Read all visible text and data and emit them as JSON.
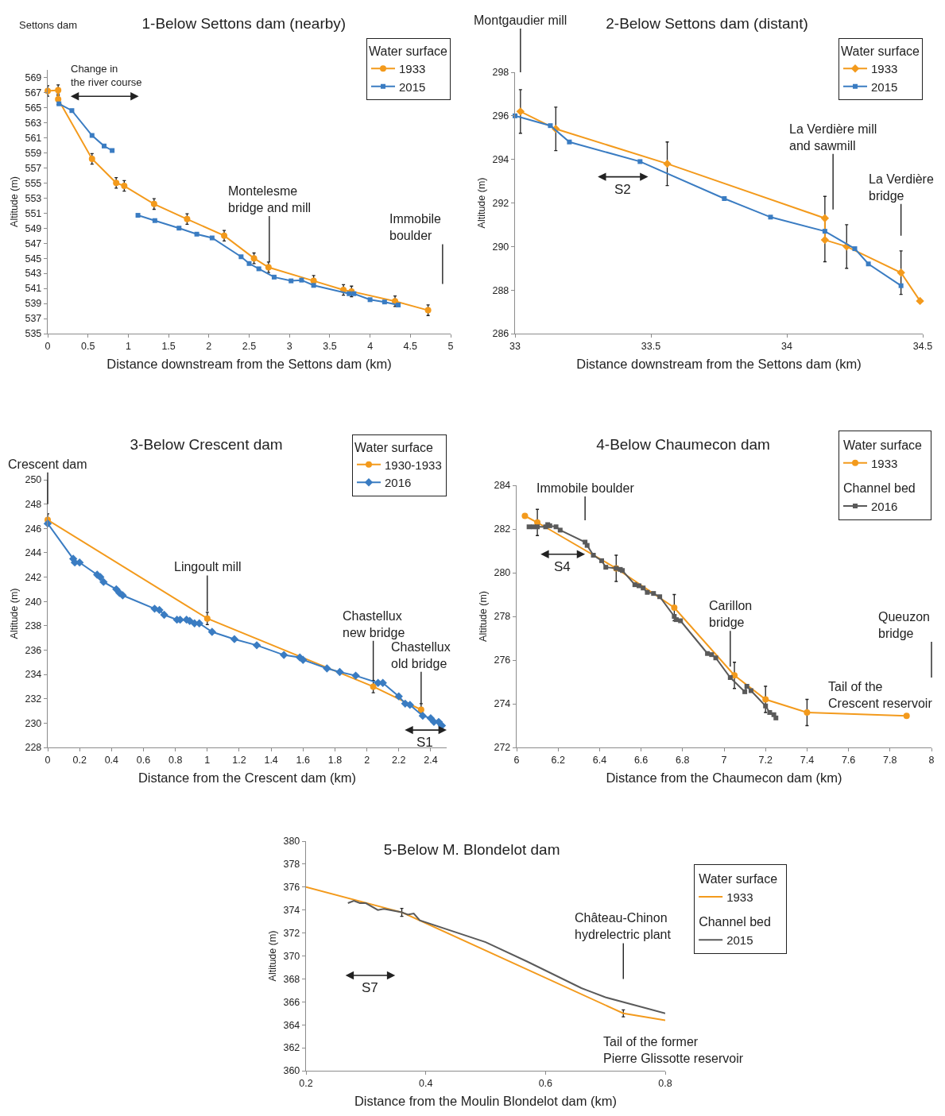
{
  "chart_data": [
    {
      "type": "line",
      "title": "1-Below Settons dam (nearby)",
      "xlabel": "Distance downstream from the Settons dam (km)",
      "ylabel": "Altitude (m)",
      "legend_title": "Water surface",
      "legend": "top right",
      "xlim": [
        0,
        5
      ],
      "xticks": [
        0,
        0.5,
        1,
        1.5,
        2,
        2.5,
        3,
        3.5,
        4,
        4.5,
        5
      ],
      "ylim": [
        535,
        570
      ],
      "yticks": [
        535,
        537,
        539,
        541,
        543,
        545,
        547,
        549,
        551,
        553,
        555,
        557,
        559,
        561,
        563,
        565,
        567,
        569
      ],
      "series": [
        {
          "name": "1933",
          "color": "#f39a1c",
          "marker": "circle",
          "x": [
            0,
            0.13,
            0.13,
            0.55,
            0.85,
            0.95,
            1.32,
            1.73,
            2.19,
            2.56,
            2.74,
            3.3,
            3.67,
            3.77,
            4.31,
            4.72
          ],
          "values": [
            567.2,
            567.3,
            566.1,
            558.2,
            555,
            554.6,
            552.2,
            550.2,
            548,
            545,
            543.8,
            542,
            540.8,
            540.6,
            539.3,
            538.1
          ],
          "errors": [
            0.7,
            0.7,
            0.7,
            0.7,
            0.7,
            0.7,
            0.7,
            0.7,
            0.7,
            0.7,
            0.7,
            0.7,
            0.7,
            0.7,
            0.7,
            0.7
          ]
        },
        {
          "name": "2015",
          "color": "#3a7cc2",
          "marker": "square",
          "x": [
            0.14,
            0.3,
            0.55,
            0.7,
            0.8,
            0.95,
            1.12,
            1.33,
            1.63,
            1.85,
            2.04,
            2.4,
            2.5,
            2.62,
            2.81,
            3.02,
            3.15,
            3.3,
            3.74,
            3.8,
            4,
            4.18,
            4.35
          ],
          "values": [
            565.5,
            564.6,
            561.3,
            559.9,
            559.3,
            null,
            550.7,
            550,
            549,
            548.2,
            547.7,
            545.2,
            544.3,
            543.6,
            542.5,
            542,
            542.1,
            541.4,
            540.3,
            540.3,
            539.5,
            539.2,
            538.8
          ]
        }
      ],
      "annotations": [
        "Settons dam",
        "Change in\nthe river course",
        {
          "text": "Montelesme\nbridge and mill",
          "x": 2.75,
          "y": 544.5
        },
        "Immobile\nboulder"
      ]
    },
    {
      "type": "line",
      "title": "2-Below Settons dam (distant)",
      "xlabel": "Distance downstream from the Settons dam (km)",
      "ylabel": "Altitude (m)",
      "legend_title": "Water surface",
      "legend": "top right",
      "xlim": [
        33,
        34.5
      ],
      "xticks": [
        33,
        33.5,
        34,
        34.5
      ],
      "ylim": [
        286,
        298
      ],
      "yticks": [
        286,
        288,
        290,
        292,
        294,
        296,
        298
      ],
      "series": [
        {
          "name": "1933",
          "color": "#f39a1c",
          "marker": "diamond",
          "x": [
            33.02,
            33.15,
            33.56,
            34.14,
            34.14,
            34.22,
            34.42,
            34.49
          ],
          "values": [
            296.2,
            295.4,
            293.8,
            291.3,
            290.3,
            290,
            288.8,
            287.5
          ],
          "errors": [
            1,
            1,
            1,
            1,
            1,
            1,
            1,
            null
          ]
        },
        {
          "name": "2015",
          "color": "#3a7cc2",
          "marker": "square",
          "x": [
            33,
            33.13,
            33.2,
            33.46,
            33.77,
            33.94,
            34.14,
            34.25,
            34.3,
            34.42
          ],
          "values": [
            296,
            295.55,
            294.8,
            293.9,
            292.2,
            291.35,
            290.7,
            289.9,
            289.2,
            288.2
          ]
        }
      ],
      "annotations": [
        "Montgaudier mill",
        "La Verdière mill\nand sawmill",
        "La Verdière\nbridge",
        "S2"
      ]
    },
    {
      "type": "line",
      "title": "3-Below Crescent dam",
      "xlabel": "Distance from the Crescent dam (km)",
      "ylabel": "Altitude (m)",
      "legend_title": "Water surface",
      "legend": "top right",
      "xlim": [
        0,
        2.5
      ],
      "xticks": [
        0,
        0.2,
        0.4,
        0.6,
        0.8,
        1,
        1.2,
        1.4,
        1.6,
        1.8,
        2,
        2.2,
        2.4
      ],
      "ylim": [
        228,
        250
      ],
      "yticks": [
        228,
        230,
        232,
        234,
        236,
        238,
        240,
        242,
        244,
        246,
        248,
        250
      ],
      "series": [
        {
          "name": "1930-1933",
          "color": "#f39a1c",
          "marker": "circle",
          "x": [
            0,
            1,
            2.04,
            2.34
          ],
          "values": [
            246.7,
            238.6,
            233,
            231.1
          ],
          "errors": [
            0.5,
            0.5,
            0.5,
            0.5
          ]
        },
        {
          "name": "2016",
          "color": "#3a7cc2",
          "marker": "diamond",
          "x": [
            0,
            0.16,
            0.17,
            0.2,
            0.31,
            0.33,
            0.35,
            0.43,
            0.45,
            0.47,
            0.67,
            0.7,
            0.73,
            0.81,
            0.83,
            0.87,
            0.89,
            0.92,
            0.95,
            1.03,
            1.17,
            1.31,
            1.48,
            1.58,
            1.6,
            1.75,
            1.83,
            1.93,
            2.07,
            2.1,
            2.2,
            2.24,
            2.27,
            2.35,
            2.4,
            2.42,
            2.45,
            2.47
          ],
          "values": [
            246.4,
            243.5,
            243.2,
            243.2,
            242.2,
            242,
            241.6,
            241,
            240.7,
            240.5,
            239.4,
            239.3,
            238.9,
            238.5,
            238.5,
            238.5,
            238.4,
            238.2,
            238.2,
            237.5,
            236.9,
            236.4,
            235.6,
            235.4,
            235.2,
            234.5,
            234.2,
            233.9,
            233.3,
            233.3,
            232.2,
            231.6,
            231.5,
            230.6,
            230.4,
            230.1,
            230.1,
            229.8
          ]
        }
      ],
      "annotations": [
        "Crescent dam",
        {
          "text": "Lingoult mill",
          "x": 1,
          "y": 239.2
        },
        {
          "text": "Chastellux\nnew bridge",
          "x": 2.04,
          "y": 233.5
        },
        {
          "text": "Chastellux\nold bridge",
          "x": 2.34,
          "y": 231.6
        },
        "S1"
      ]
    },
    {
      "type": "line",
      "title": "4-Below Chaumecon dam",
      "xlabel": "Distance from the Chaumecon dam (km)",
      "ylabel": "Altitude (m)",
      "legend_title": [
        "Water surface",
        "Channel bed"
      ],
      "legend": "top right",
      "xlim": [
        6,
        8
      ],
      "xticks": [
        6,
        6.2,
        6.4,
        6.6,
        6.8,
        7,
        7.2,
        7.4,
        7.6,
        7.8,
        8
      ],
      "ylim": [
        272,
        284
      ],
      "yticks": [
        272,
        274,
        276,
        278,
        280,
        282,
        284
      ],
      "series": [
        {
          "name": "1933",
          "color": "#f39a1c",
          "marker": "circle",
          "x": [
            6.04,
            6.1,
            6.48,
            6.76,
            7.05,
            7.2,
            7.4,
            7.88
          ],
          "values": [
            282.6,
            282.3,
            280.2,
            278.4,
            275.3,
            274.2,
            273.6,
            273.45
          ],
          "errors": [
            null,
            0.6,
            0.6,
            0.6,
            0.6,
            0.6,
            0.6,
            null
          ]
        },
        {
          "name": "2016",
          "color": "#5a5a5a",
          "marker": "square",
          "x": [
            6.06,
            6.08,
            6.1,
            6.14,
            6.15,
            6.16,
            6.19,
            6.21,
            6.33,
            6.34,
            6.37,
            6.41,
            6.43,
            6.48,
            6.5,
            6.51,
            6.57,
            6.59,
            6.61,
            6.63,
            6.66,
            6.69,
            6.76,
            6.77,
            6.79,
            6.92,
            6.94,
            6.96,
            7.03,
            7.1,
            7.11,
            7.13,
            7.2,
            7.22,
            7.24,
            7.25
          ],
          "values": [
            282.1,
            282.1,
            282.1,
            282.1,
            282.2,
            282.15,
            282.1,
            281.95,
            281.4,
            281.25,
            280.8,
            280.55,
            280.25,
            280.2,
            280.15,
            280.1,
            279.45,
            279.4,
            279.3,
            279.1,
            279.05,
            278.9,
            278,
            277.85,
            277.8,
            276.3,
            276.25,
            276.1,
            275.2,
            274.55,
            274.8,
            274.6,
            273.9,
            273.6,
            273.5,
            273.35
          ]
        }
      ],
      "annotations": [
        "Immobile boulder",
        "S4",
        {
          "text": "Carillon\nbridge",
          "x": 7.03,
          "y": 275.7
        },
        "Queuzon\nbridge",
        "Tail of the\nCrescent reservoir"
      ]
    },
    {
      "type": "line",
      "title": "5-Below M. Blondelot dam",
      "xlabel": "Distance from the Moulin Blondelot dam (km)",
      "ylabel": "Altitude (m)",
      "legend_title": [
        "Water surface",
        "Channel bed"
      ],
      "legend": "right",
      "marker": "none",
      "xlim": [
        0.2,
        0.8
      ],
      "xticks": [
        0.2,
        0.4,
        0.6,
        0.8
      ],
      "ylim": [
        360,
        380
      ],
      "yticks": [
        360,
        362,
        364,
        366,
        368,
        370,
        372,
        374,
        376,
        378,
        380
      ],
      "series": [
        {
          "name": "1933",
          "color": "#f39a1c",
          "x": [
            0.2,
            0.36,
            0.73,
            0.8
          ],
          "values": [
            376,
            373.8,
            365,
            364.4
          ],
          "errors": [
            null,
            0.35,
            0.3,
            null
          ]
        },
        {
          "name": "2015",
          "color": "#5a5a5a",
          "x": [
            0.27,
            0.28,
            0.29,
            0.3,
            0.32,
            0.33,
            0.36,
            0.37,
            0.38,
            0.39,
            0.5,
            0.57,
            0.66,
            0.67,
            0.7,
            0.8
          ],
          "values": [
            374.6,
            374.8,
            374.6,
            374.6,
            374,
            374.1,
            373.8,
            373.6,
            373.7,
            373.1,
            371.2,
            369.5,
            367.2,
            367,
            366.4,
            365
          ]
        }
      ],
      "annotations": [
        "S7",
        "Château-Chinon\nhydrelectric plant",
        "Tail of the former\nPierre Glissotte reservoir"
      ]
    }
  ]
}
